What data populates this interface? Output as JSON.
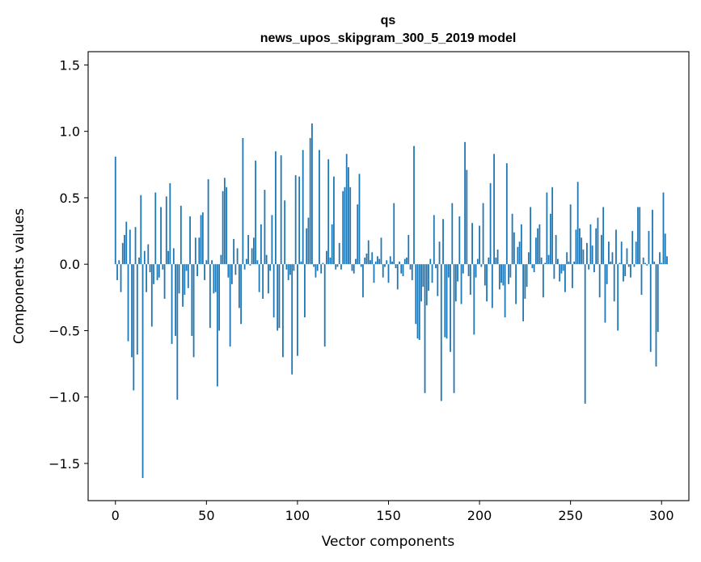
{
  "chart_data": {
    "type": "bar",
    "title": "qs",
    "subtitle": "news_upos_skipgram_300_5_2019 model",
    "xlabel": "Vector components",
    "ylabel": "Components values",
    "xlim": [
      -15,
      315
    ],
    "ylim": [
      -1.78,
      1.6
    ],
    "xticks": [
      0,
      50,
      100,
      150,
      200,
      250,
      300
    ],
    "yticks": [
      -1.5,
      -1.0,
      -0.5,
      0.0,
      0.5,
      1.0,
      1.5
    ],
    "xtick_labels": [
      "0",
      "50",
      "100",
      "150",
      "200",
      "250",
      "300"
    ],
    "ytick_labels": [
      "−1.5",
      "−1.0",
      "−0.5",
      "0.0",
      "0.5",
      "1.0",
      "1.5"
    ],
    "bar_color": "#1f77b4",
    "values": [
      0.81,
      -0.12,
      0.03,
      -0.21,
      0.16,
      0.22,
      0.32,
      -0.58,
      0.26,
      -0.7,
      -0.95,
      0.28,
      -0.68,
      0.05,
      0.52,
      -1.61,
      0.1,
      -0.21,
      0.15,
      -0.06,
      -0.47,
      -0.15,
      0.54,
      -0.12,
      -0.1,
      0.43,
      -0.04,
      -0.26,
      0.51,
      0.1,
      0.61,
      -0.6,
      0.12,
      -0.54,
      -1.02,
      -0.22,
      0.44,
      -0.32,
      -0.23,
      -0.05,
      -0.18,
      0.36,
      -0.54,
      -0.7,
      0.2,
      -0.09,
      0.2,
      0.37,
      0.39,
      -0.12,
      0.03,
      0.64,
      -0.48,
      0.03,
      -0.22,
      -0.21,
      -0.92,
      -0.5,
      0.07,
      0.55,
      0.65,
      0.58,
      -0.1,
      -0.62,
      -0.15,
      0.19,
      -0.08,
      0.12,
      -0.33,
      -0.45,
      0.95,
      -0.04,
      0.04,
      0.22,
      -0.01,
      0.12,
      0.2,
      0.78,
      0.03,
      -0.21,
      0.3,
      -0.26,
      0.56,
      0.07,
      -0.22,
      -0.05,
      0.37,
      -0.4,
      0.85,
      -0.5,
      -0.48,
      0.82,
      -0.7,
      0.48,
      -0.04,
      -0.12,
      -0.08,
      -0.83,
      -0.05,
      0.67,
      -0.69,
      0.66,
      0.02,
      0.86,
      -0.4,
      0.27,
      0.35,
      0.95,
      1.06,
      -0.02,
      -0.1,
      -0.05,
      0.86,
      -0.07,
      0.01,
      -0.62,
      0.1,
      0.79,
      0.05,
      0.3,
      0.66,
      -0.04,
      -0.02,
      0.16,
      -0.04,
      0.55,
      0.58,
      0.83,
      0.73,
      0.58,
      -0.05,
      -0.07,
      0.04,
      0.45,
      0.68,
      -0.02,
      -0.25,
      0.05,
      0.08,
      0.18,
      0.03,
      0.09,
      -0.14,
      0.02,
      0.06,
      0.04,
      0.2,
      -0.1,
      -0.02,
      0.03,
      -0.14,
      0.06,
      0.02,
      0.46,
      -0.03,
      -0.19,
      0.02,
      -0.07,
      -0.09,
      0.04,
      0.05,
      0.22,
      -0.04,
      -0.12,
      0.89,
      -0.45,
      -0.56,
      -0.57,
      -0.28,
      -0.17,
      -0.97,
      -0.31,
      -0.2,
      0.04,
      -0.14,
      0.37,
      -0.03,
      -0.24,
      0.17,
      -1.03,
      0.34,
      -0.55,
      -0.56,
      -0.1,
      -0.66,
      0.46,
      -0.97,
      -0.28,
      -0.13,
      0.36,
      -0.3,
      -0.07,
      0.92,
      0.71,
      -0.09,
      -0.23,
      0.31,
      -0.53,
      -0.1,
      0.04,
      0.29,
      -0.02,
      0.46,
      -0.16,
      -0.28,
      0.05,
      0.61,
      -0.33,
      0.83,
      0.05,
      0.11,
      -0.19,
      -0.14,
      -0.16,
      -0.4,
      0.76,
      -0.15,
      -0.1,
      0.38,
      0.24,
      -0.3,
      0.13,
      0.17,
      0.3,
      -0.43,
      -0.26,
      -0.17,
      0.09,
      0.43,
      -0.03,
      -0.06,
      0.2,
      0.27,
      0.3,
      0.05,
      -0.25,
      0.01,
      0.54,
      0.07,
      0.38,
      0.58,
      -0.11,
      0.22,
      0.04,
      -0.13,
      -0.07,
      -0.05,
      -0.21,
      0.09,
      0.02,
      0.45,
      -0.18,
      0.02,
      0.26,
      0.62,
      0.27,
      0.2,
      0.11,
      -1.05,
      0.16,
      -0.04,
      0.3,
      0.14,
      -0.06,
      0.27,
      0.35,
      -0.25,
      0.22,
      0.43,
      -0.44,
      -0.15,
      0.17,
      0.02,
      0.09,
      -0.28,
      0.26,
      -0.5,
      0.01,
      0.17,
      -0.13,
      -0.09,
      0.12,
      -0.02,
      -0.1,
      0.25,
      -0.02,
      0.17,
      0.43,
      0.43,
      -0.23,
      0.05,
      0.01,
      -0.01,
      0.25,
      -0.66,
      0.41,
      0.02,
      -0.77,
      -0.51,
      0.09,
      0.01,
      0.54,
      0.23,
      0.06
    ]
  }
}
